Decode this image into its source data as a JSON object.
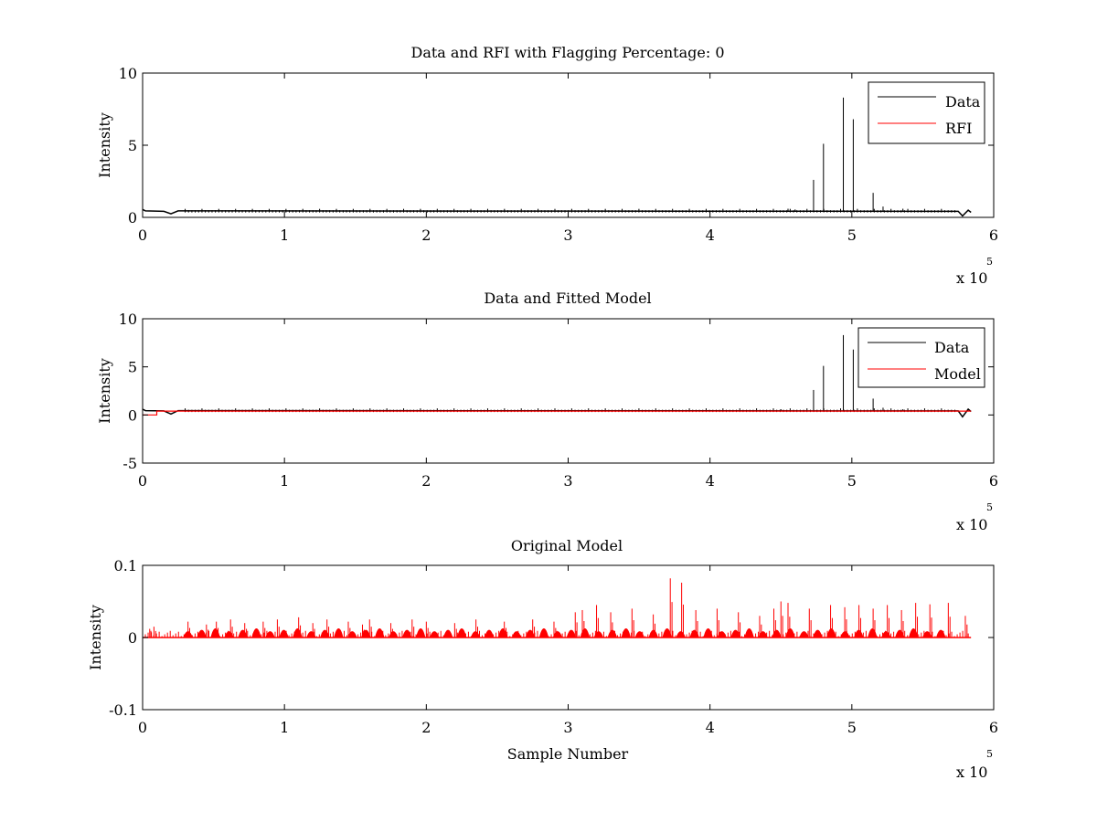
{
  "figure": {
    "background": "#ffffff",
    "axes_color": "#000000"
  },
  "chart_data": [
    {
      "type": "line",
      "title": "Data and RFI with Flagging Percentage: 0",
      "xlabel": "",
      "ylabel": "Intensity",
      "xlim": [
        0,
        6
      ],
      "ylim": [
        0,
        10
      ],
      "x_ticks": [
        "0",
        "1",
        "2",
        "3",
        "4",
        "5",
        "6"
      ],
      "y_ticks": [
        "0",
        "5",
        "10"
      ],
      "y_tick_values": [
        0,
        5,
        10
      ],
      "x_multiplier": {
        "base": "x 10",
        "exponent": "5"
      },
      "grid": false,
      "legend": {
        "placement": "top-right",
        "entries": [
          {
            "name": "Data",
            "color": "#000000"
          },
          {
            "name": "RFI",
            "color": "#ff0000"
          }
        ]
      },
      "series": [
        {
          "name": "Data",
          "color": "#000000",
          "baseline": 0.4,
          "baseline_points": [
            [
              0,
              0.55
            ],
            [
              0.02,
              0.45
            ],
            [
              0.15,
              0.42
            ],
            [
              0.2,
              0.25
            ],
            [
              0.25,
              0.45
            ],
            [
              5.75,
              0.42
            ],
            [
              5.78,
              0.1
            ],
            [
              5.82,
              0.5
            ],
            [
              5.84,
              0.35
            ]
          ],
          "spikes": [
            [
              4.73,
              2.6
            ],
            [
              4.8,
              5.1
            ],
            [
              4.94,
              8.3
            ],
            [
              5.01,
              6.8
            ],
            [
              5.15,
              1.7
            ],
            [
              5.22,
              0.75
            ],
            [
              5.36,
              0.6
            ],
            [
              4.55,
              0.6
            ],
            [
              4.6,
              0.55
            ]
          ]
        },
        {
          "name": "RFI",
          "color": "#ff0000"
        }
      ]
    },
    {
      "type": "line",
      "title": "Data and Fitted Model",
      "xlabel": "",
      "ylabel": "Intensity",
      "xlim": [
        0,
        6
      ],
      "ylim": [
        -5,
        10
      ],
      "x_ticks": [
        "0",
        "1",
        "2",
        "3",
        "4",
        "5",
        "6"
      ],
      "y_ticks": [
        "-5",
        "0",
        "5",
        "10"
      ],
      "y_tick_values": [
        -5,
        0,
        5,
        10
      ],
      "x_multiplier": {
        "base": "x 10",
        "exponent": "5"
      },
      "grid": false,
      "legend": {
        "placement": "top-right",
        "entries": [
          {
            "name": "Data",
            "color": "#000000"
          },
          {
            "name": "Model",
            "color": "#ff0000"
          }
        ]
      },
      "series": [
        {
          "name": "Data",
          "color": "#000000",
          "baseline": 0.4,
          "baseline_points": [
            [
              0,
              0.6
            ],
            [
              0.02,
              0.45
            ],
            [
              0.15,
              0.42
            ],
            [
              0.2,
              0.1
            ],
            [
              0.25,
              0.45
            ],
            [
              5.75,
              0.42
            ],
            [
              5.78,
              -0.2
            ],
            [
              5.82,
              0.6
            ],
            [
              5.84,
              0.35
            ]
          ],
          "spikes": [
            [
              4.73,
              2.6
            ],
            [
              4.8,
              5.1
            ],
            [
              4.94,
              8.3
            ],
            [
              5.01,
              6.8
            ],
            [
              5.15,
              1.7
            ],
            [
              5.22,
              0.75
            ],
            [
              5.36,
              0.6
            ],
            [
              4.5,
              0.6
            ]
          ]
        },
        {
          "name": "Model",
          "color": "#ff0000",
          "points": [
            [
              0,
              0.0
            ],
            [
              0.1,
              0.0
            ],
            [
              0.1,
              0.4
            ],
            [
              5.84,
              0.4
            ]
          ]
        }
      ]
    },
    {
      "type": "line",
      "title": "Original Model",
      "xlabel": "Sample Number",
      "ylabel": "Intensity",
      "xlim": [
        0,
        6
      ],
      "ylim": [
        -0.1,
        0.1
      ],
      "x_ticks": [
        "0",
        "1",
        "2",
        "3",
        "4",
        "5",
        "6"
      ],
      "y_ticks": [
        "-0.1",
        "0",
        "0.1"
      ],
      "y_tick_values": [
        -0.1,
        0,
        0.1
      ],
      "x_multiplier": {
        "base": "x 10",
        "exponent": "5"
      },
      "grid": false,
      "series": [
        {
          "name": "",
          "color": "#ff0000",
          "x_range": [
            0.0,
            5.84
          ],
          "periodic_peaks": {
            "start": 0.32,
            "spacing": 0.0965,
            "count": 56
          },
          "peaks": [
            [
              0.05,
              0.012
            ],
            [
              0.08,
              0.015
            ],
            [
              0.32,
              0.022
            ],
            [
              0.45,
              0.018
            ],
            [
              0.52,
              0.022
            ],
            [
              0.62,
              0.025
            ],
            [
              0.72,
              0.02
            ],
            [
              0.85,
              0.022
            ],
            [
              0.95,
              0.025
            ],
            [
              1.1,
              0.028
            ],
            [
              1.2,
              0.02
            ],
            [
              1.3,
              0.025
            ],
            [
              1.45,
              0.022
            ],
            [
              1.55,
              0.018
            ],
            [
              1.6,
              0.025
            ],
            [
              1.75,
              0.02
            ],
            [
              1.9,
              0.025
            ],
            [
              2.0,
              0.022
            ],
            [
              2.2,
              0.02
            ],
            [
              2.35,
              0.025
            ],
            [
              2.55,
              0.022
            ],
            [
              2.75,
              0.025
            ],
            [
              2.9,
              0.022
            ],
            [
              3.05,
              0.035
            ],
            [
              3.1,
              0.038
            ],
            [
              3.2,
              0.045
            ],
            [
              3.3,
              0.035
            ],
            [
              3.45,
              0.04
            ],
            [
              3.6,
              0.032
            ],
            [
              3.72,
              0.082
            ],
            [
              3.8,
              0.076
            ],
            [
              3.9,
              0.038
            ],
            [
              4.05,
              0.04
            ],
            [
              4.2,
              0.035
            ],
            [
              4.35,
              0.03
            ],
            [
              4.45,
              0.04
            ],
            [
              4.5,
              0.05
            ],
            [
              4.55,
              0.048
            ],
            [
              4.7,
              0.04
            ],
            [
              4.85,
              0.045
            ],
            [
              4.95,
              0.042
            ],
            [
              5.05,
              0.045
            ],
            [
              5.15,
              0.04
            ],
            [
              5.25,
              0.045
            ],
            [
              5.35,
              0.038
            ],
            [
              5.45,
              0.048
            ],
            [
              5.55,
              0.046
            ],
            [
              5.68,
              0.048
            ],
            [
              5.8,
              0.03
            ]
          ]
        }
      ]
    }
  ]
}
